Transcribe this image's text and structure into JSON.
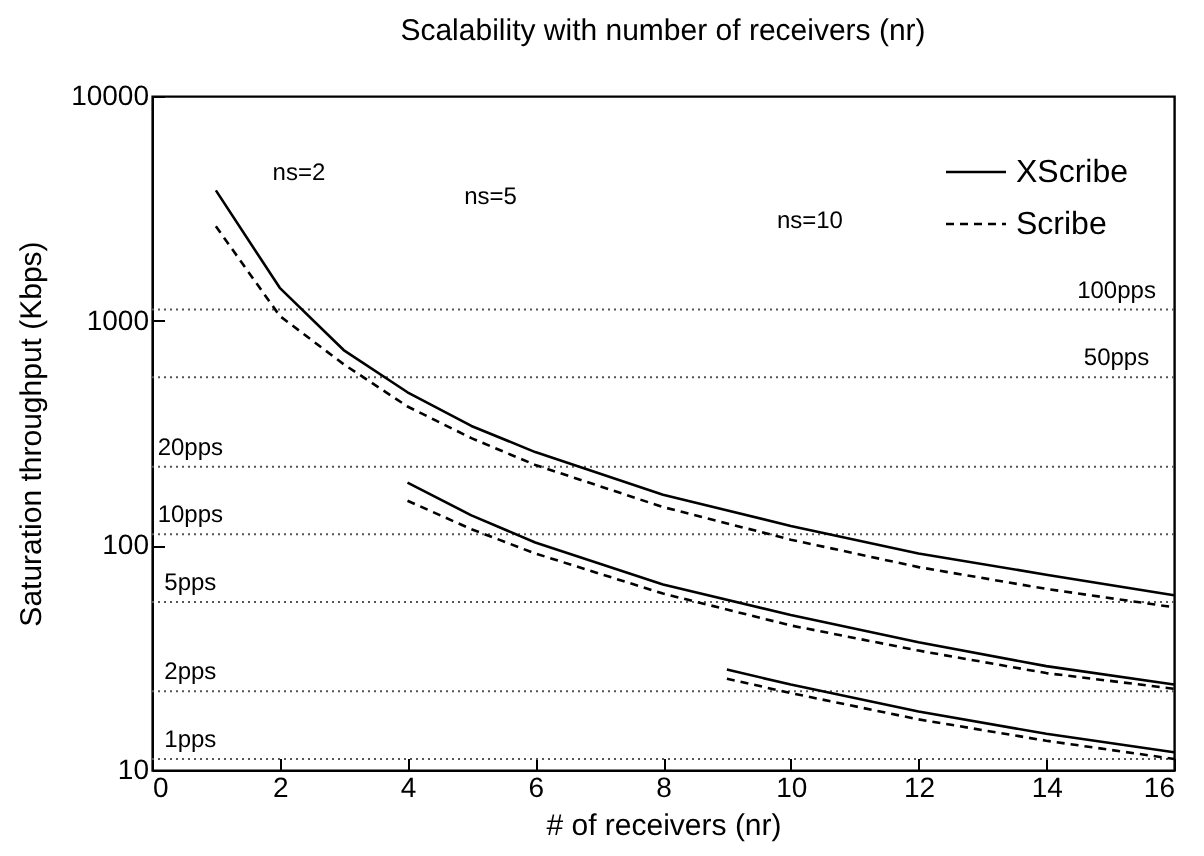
{
  "chart_data": {
    "type": "line",
    "title": "Scalability with number of receivers (nr)",
    "xlabel": "# of receivers (nr)",
    "ylabel": "Saturation throughput (Kbps)",
    "log": "y",
    "xlim": [
      0,
      16
    ],
    "xticks": [
      0,
      2,
      4,
      6,
      8,
      10,
      12,
      14,
      16
    ],
    "ylim": [
      10,
      10000
    ],
    "yticks": [
      10,
      100,
      1000,
      10000
    ],
    "grid": false,
    "legend": "top right",
    "marker": "none",
    "series": [
      {
        "name": "XScribe",
        "color": "#000000",
        "line_style": "solid",
        "x": [
          1,
          2,
          3,
          4,
          5,
          6,
          8,
          10,
          12,
          14,
          16
        ],
        "values": [
          3800,
          1400,
          740,
          480,
          340,
          260,
          168,
          122,
          92,
          74,
          60
        ]
      },
      {
        "name": "Scribe",
        "color": "#000000",
        "line_style": "dashed",
        "x": [
          1,
          2,
          3,
          4,
          5,
          6,
          8,
          10,
          12,
          14,
          16
        ],
        "values": [
          2630,
          1050,
          640,
          415,
          300,
          228,
          148,
          106,
          80,
          64,
          53
        ]
      },
      {
        "color": "#000000",
        "line_style": "solid",
        "x": [
          4,
          5,
          6,
          8,
          10,
          12,
          14,
          16
        ],
        "values": [
          190,
          136,
          103,
          67,
          49,
          37,
          29,
          24
        ]
      },
      {
        "color": "#000000",
        "line_style": "dashed",
        "x": [
          4,
          5,
          6,
          8,
          10,
          12,
          14,
          16
        ],
        "values": [
          158,
          118,
          92,
          61,
          44,
          34,
          27,
          23
        ]
      },
      {
        "color": "#000000",
        "line_style": "solid",
        "x": [
          9,
          10,
          12,
          14,
          16
        ],
        "values": [
          28,
          24,
          18.2,
          14.5,
          12
        ]
      },
      {
        "color": "#000000",
        "line_style": "dashed",
        "x": [
          9,
          10,
          12,
          14,
          16
        ],
        "values": [
          25.5,
          22,
          16.8,
          13.5,
          11.2
        ]
      }
    ],
    "ref_lines": [
      {
        "axis": "y",
        "value": 1120,
        "label": "100pps",
        "line_style": "dotted"
      },
      {
        "axis": "y",
        "value": 560,
        "label": "50pps",
        "line_style": "dotted"
      },
      {
        "axis": "y",
        "value": 224,
        "label": "20pps",
        "line_style": "dotted"
      },
      {
        "axis": "y",
        "value": 112,
        "label": "10pps",
        "line_style": "dotted"
      },
      {
        "axis": "y",
        "value": 56,
        "label": "5pps",
        "line_style": "dotted"
      },
      {
        "axis": "y",
        "value": 22.4,
        "label": "2pps",
        "line_style": "dotted"
      },
      {
        "axis": "y",
        "value": 11.2,
        "label": "1pps",
        "line_style": "dotted"
      }
    ],
    "annotations": [
      "ns=2",
      "ns=5",
      "ns=10"
    ]
  }
}
